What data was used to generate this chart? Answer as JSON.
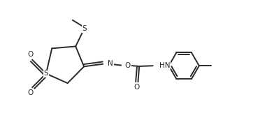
{
  "background": "#ffffff",
  "lc": "#2a2a2a",
  "lw": 1.4,
  "fs": 7.5,
  "figsize": [
    3.92,
    1.82
  ],
  "dpi": 100,
  "xlim": [
    -0.5,
    9.8
  ],
  "ylim": [
    0.0,
    5.0
  ]
}
